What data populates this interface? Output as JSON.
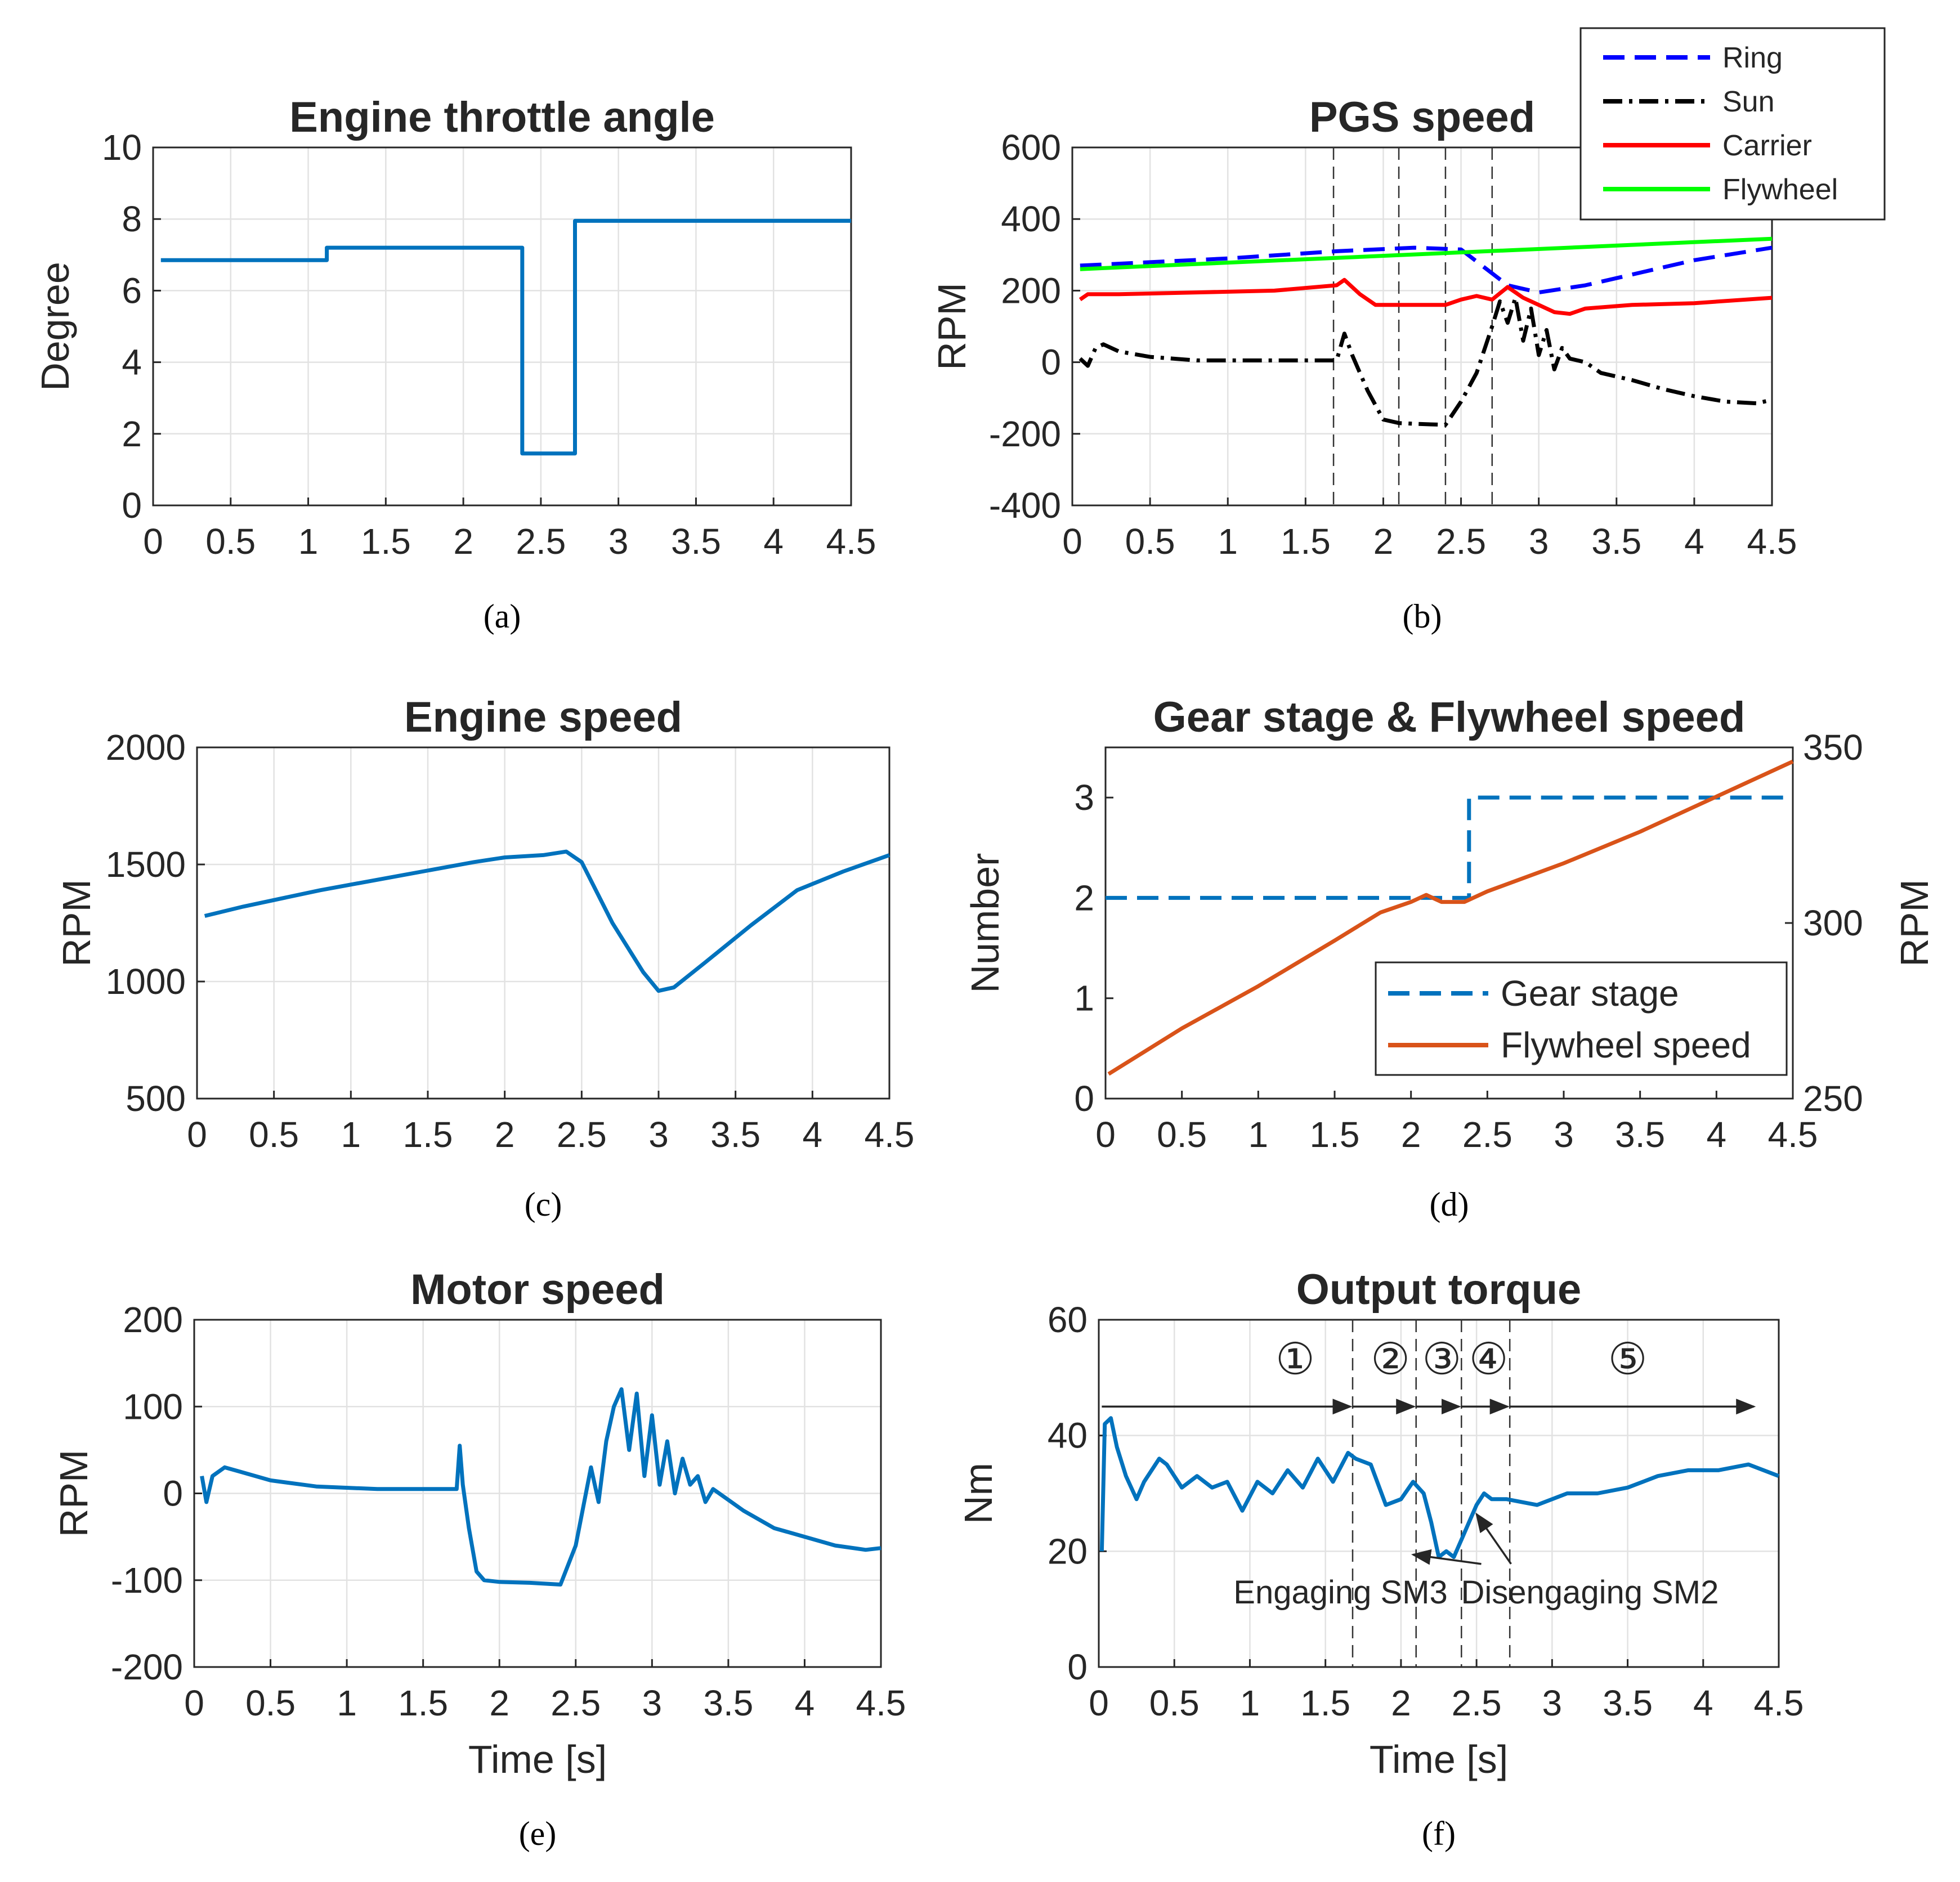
{
  "chart_data": [
    {
      "id": "a",
      "type": "line",
      "title": "Engine throttle angle",
      "xlabel": "",
      "ylabel": "Degree",
      "caption": "(a)",
      "xlim": [
        0,
        4.5
      ],
      "ylim": [
        0,
        10
      ],
      "xticks": [
        "0",
        "0.5",
        "1",
        "1.5",
        "2",
        "2.5",
        "3",
        "3.5",
        "4",
        "4.5"
      ],
      "yticks": [
        "0",
        "2",
        "4",
        "6",
        "8",
        "10"
      ],
      "grid": true,
      "series": [
        {
          "name": "Throttle",
          "color": "#0072bd",
          "dash": "solid",
          "x": [
            0.05,
            1.12,
            1.12,
            2.38,
            2.38,
            2.72,
            2.72,
            4.5
          ],
          "y": [
            6.85,
            6.85,
            7.2,
            7.2,
            1.45,
            1.45,
            7.95,
            7.95
          ]
        }
      ]
    },
    {
      "id": "b",
      "type": "line",
      "title": "PGS speed",
      "xlabel": "",
      "ylabel": "RPM",
      "caption": "(b)",
      "xlim": [
        0,
        4.5
      ],
      "ylim": [
        -400,
        600
      ],
      "xticks": [
        "0",
        "0.5",
        "1",
        "1.5",
        "2",
        "2.5",
        "3",
        "3.5",
        "4",
        "4.5"
      ],
      "yticks": [
        "-400",
        "-200",
        "0",
        "200",
        "400",
        "600"
      ],
      "grid": true,
      "legend": "top-right",
      "vlines": [
        1.68,
        2.1,
        2.4,
        2.7
      ],
      "series": [
        {
          "name": "Ring",
          "color": "#0000ff",
          "dash": "dashed",
          "x": [
            0.05,
            1.0,
            1.7,
            2.2,
            2.5,
            2.8,
            3.0,
            3.3,
            3.6,
            4.0,
            4.5
          ],
          "y": [
            270,
            290,
            310,
            320,
            315,
            215,
            195,
            215,
            245,
            285,
            320
          ]
        },
        {
          "name": "Sun",
          "color": "#000000",
          "dash": "dashdot",
          "x": [
            0.05,
            0.1,
            0.15,
            0.2,
            0.3,
            0.5,
            0.8,
            1.2,
            1.7,
            1.75,
            1.8,
            1.9,
            2.0,
            2.1,
            2.2,
            2.4,
            2.5,
            2.6,
            2.7,
            2.75,
            2.8,
            2.85,
            2.9,
            2.95,
            3.0,
            3.05,
            3.1,
            3.15,
            3.2,
            3.3,
            3.4,
            3.6,
            3.8,
            4.0,
            4.2,
            4.4,
            4.5
          ],
          "y": [
            10,
            -10,
            40,
            50,
            30,
            15,
            5,
            5,
            5,
            80,
            20,
            -80,
            -160,
            -170,
            -172,
            -175,
            -110,
            -30,
            100,
            170,
            110,
            180,
            60,
            150,
            20,
            90,
            -20,
            40,
            10,
            0,
            -30,
            -50,
            -75,
            -95,
            -110,
            -115,
            -105
          ]
        },
        {
          "name": "Carrier",
          "color": "#ff0000",
          "dash": "solid",
          "x": [
            0.05,
            0.1,
            0.3,
            0.8,
            1.3,
            1.7,
            1.75,
            1.85,
            1.95,
            2.2,
            2.4,
            2.5,
            2.6,
            2.7,
            2.8,
            2.9,
            3.0,
            3.1,
            3.2,
            3.3,
            3.6,
            4.0,
            4.5
          ],
          "y": [
            175,
            190,
            190,
            195,
            200,
            215,
            230,
            190,
            160,
            160,
            160,
            175,
            185,
            175,
            210,
            180,
            160,
            140,
            135,
            150,
            160,
            165,
            180
          ]
        },
        {
          "name": "Flywheel",
          "color": "#00ff00",
          "dash": "solid",
          "x": [
            0.05,
            4.5
          ],
          "y": [
            260,
            345
          ]
        }
      ]
    },
    {
      "id": "c",
      "type": "line",
      "title": "Engine speed",
      "xlabel": "",
      "ylabel": "RPM",
      "caption": "(c)",
      "xlim": [
        0,
        4.5
      ],
      "ylim": [
        500,
        2000
      ],
      "xticks": [
        "0",
        "0.5",
        "1",
        "1.5",
        "2",
        "2.5",
        "3",
        "3.5",
        "4",
        "4.5"
      ],
      "yticks": [
        "500",
        "1000",
        "1500",
        "2000"
      ],
      "grid": true,
      "series": [
        {
          "name": "Engine speed",
          "color": "#0072bd",
          "dash": "solid",
          "x": [
            0.05,
            0.3,
            0.8,
            1.3,
            1.8,
            2.0,
            2.25,
            2.4,
            2.5,
            2.7,
            2.9,
            3.0,
            3.1,
            3.3,
            3.6,
            3.9,
            4.2,
            4.5
          ],
          "y": [
            1280,
            1320,
            1390,
            1450,
            1510,
            1530,
            1540,
            1555,
            1510,
            1250,
            1040,
            960,
            975,
            1080,
            1240,
            1390,
            1470,
            1540
          ]
        }
      ]
    },
    {
      "id": "d",
      "type": "line",
      "title": "Gear stage & Flywheel speed",
      "xlabel": "",
      "ylabel": "Number",
      "ylabel_right": "RPM",
      "caption": "(d)",
      "xlim": [
        0,
        4.5
      ],
      "ylim": [
        0,
        3.5
      ],
      "ylim_right": [
        250,
        350
      ],
      "xticks": [
        "0",
        "0.5",
        "1",
        "1.5",
        "2",
        "2.5",
        "3",
        "3.5",
        "4",
        "4.5"
      ],
      "yticks": [
        "0",
        "1",
        "2",
        "3"
      ],
      "yticks_right": [
        "250",
        "300",
        "350"
      ],
      "grid": false,
      "legend": "bottom-right",
      "series": [
        {
          "name": "Gear stage",
          "color": "#0072bd",
          "dash": "dashed",
          "axis": "left",
          "x": [
            0,
            2.38,
            2.38,
            4.5
          ],
          "y": [
            2,
            2,
            3,
            3
          ]
        },
        {
          "name": "Flywheel speed",
          "color": "#d95319",
          "dash": "solid",
          "axis": "right",
          "x": [
            0.02,
            0.5,
            1.0,
            1.5,
            1.8,
            2.0,
            2.1,
            2.2,
            2.35,
            2.5,
            3.0,
            3.5,
            4.0,
            4.5
          ],
          "y": [
            257,
            270,
            282,
            295,
            303,
            306,
            308,
            306,
            306,
            309,
            317,
            326,
            336,
            346
          ]
        }
      ]
    },
    {
      "id": "e",
      "type": "line",
      "title": "Motor speed",
      "xlabel": "Time [s]",
      "ylabel": "RPM",
      "caption": "(e)",
      "xlim": [
        0,
        4.5
      ],
      "ylim": [
        -200,
        200
      ],
      "xticks": [
        "0",
        "0.5",
        "1",
        "1.5",
        "2",
        "2.5",
        "3",
        "3.5",
        "4",
        "4.5"
      ],
      "yticks": [
        "-200",
        "-100",
        "0",
        "100",
        "200"
      ],
      "grid": true,
      "series": [
        {
          "name": "Motor speed",
          "color": "#0072bd",
          "dash": "solid",
          "x": [
            0.05,
            0.08,
            0.12,
            0.2,
            0.3,
            0.5,
            0.8,
            1.2,
            1.72,
            1.74,
            1.76,
            1.8,
            1.85,
            1.9,
            2.0,
            2.2,
            2.4,
            2.5,
            2.6,
            2.65,
            2.7,
            2.75,
            2.8,
            2.85,
            2.9,
            2.95,
            3.0,
            3.05,
            3.1,
            3.15,
            3.2,
            3.25,
            3.3,
            3.35,
            3.4,
            3.6,
            3.8,
            4.0,
            4.2,
            4.4,
            4.5
          ],
          "y": [
            20,
            -10,
            20,
            30,
            25,
            15,
            8,
            5,
            5,
            55,
            10,
            -40,
            -90,
            -100,
            -102,
            -103,
            -105,
            -60,
            30,
            -10,
            60,
            100,
            120,
            50,
            115,
            20,
            90,
            10,
            60,
            0,
            40,
            10,
            20,
            -10,
            5,
            -20,
            -40,
            -50,
            -60,
            -65,
            -63
          ]
        }
      ]
    },
    {
      "id": "f",
      "type": "line",
      "title": "Output torque",
      "xlabel": "Time [s]",
      "ylabel": "Nm",
      "caption": "(f)",
      "xlim": [
        0,
        4.5
      ],
      "ylim": [
        0,
        60
      ],
      "xticks": [
        "0",
        "0.5",
        "1",
        "1.5",
        "2",
        "2.5",
        "3",
        "3.5",
        "4",
        "4.5"
      ],
      "yticks": [
        "0",
        "20",
        "40",
        "60"
      ],
      "grid": true,
      "vlines": [
        1.68,
        2.1,
        2.4,
        2.72
      ],
      "phases": [
        {
          "label": "①",
          "x_from": 0.02,
          "x_to": 1.68,
          "label_x": 1.3
        },
        {
          "label": "②",
          "x_from": 1.68,
          "x_to": 2.1,
          "label_x": 1.93
        },
        {
          "label": "③",
          "x_from": 2.1,
          "x_to": 2.4,
          "label_x": 2.27
        },
        {
          "label": "④",
          "x_from": 2.4,
          "x_to": 2.72,
          "label_x": 2.58
        },
        {
          "label": "⑤",
          "x_from": 2.72,
          "x_to": 4.35,
          "label_x": 3.5
        }
      ],
      "annotations": [
        {
          "text": "Engaging SM3",
          "target_x": 2.08,
          "target_y": 20,
          "text_x": 1.6,
          "text_y": 11
        },
        {
          "text": "Disengaging SM2",
          "target_x": 2.5,
          "target_y": 27,
          "text_x": 3.25,
          "text_y": 11
        }
      ],
      "series": [
        {
          "name": "Output torque",
          "color": "#0072bd",
          "dash": "solid",
          "x": [
            0.02,
            0.04,
            0.08,
            0.12,
            0.18,
            0.25,
            0.3,
            0.4,
            0.45,
            0.55,
            0.65,
            0.75,
            0.85,
            0.95,
            1.05,
            1.15,
            1.25,
            1.35,
            1.45,
            1.55,
            1.65,
            1.7,
            1.8,
            1.9,
            2.0,
            2.08,
            2.15,
            2.2,
            2.25,
            2.3,
            2.35,
            2.4,
            2.45,
            2.5,
            2.55,
            2.6,
            2.7,
            2.9,
            3.1,
            3.3,
            3.5,
            3.7,
            3.9,
            4.1,
            4.3,
            4.5
          ],
          "y": [
            20,
            42,
            43,
            38,
            33,
            29,
            32,
            36,
            35,
            31,
            33,
            31,
            32,
            27,
            32,
            30,
            34,
            31,
            36,
            32,
            37,
            36,
            35,
            28,
            29,
            32,
            30,
            25,
            19,
            20,
            19,
            22,
            25,
            28,
            30,
            29,
            29,
            28,
            30,
            30,
            31,
            33,
            34,
            34,
            35,
            33
          ]
        }
      ]
    }
  ]
}
